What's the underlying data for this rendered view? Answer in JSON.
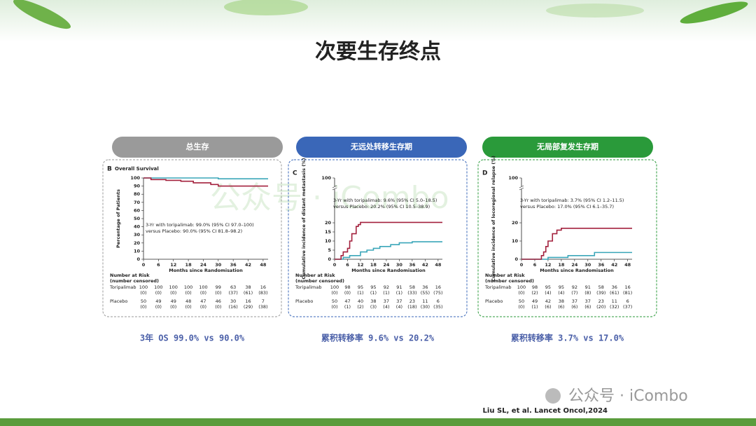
{
  "title": "次要生存终点",
  "panels": [
    {
      "header": "总生存",
      "summary": "3年 OS 99.0% vs 90.0%"
    },
    {
      "header": "无远处转移生存期",
      "summary": "累积转移率 9.6% vs 20.2%"
    },
    {
      "header": "无局部复发生存期",
      "summary": "累积转移率 3.7% vs 17.0%"
    }
  ],
  "citation": "Liu SL, et al. Lancet Oncol,2024",
  "watermark": "公众号 · iCombo",
  "chart_data": [
    {
      "type": "line",
      "step": "post",
      "panel_label": "B",
      "title": "Overall Survival",
      "y_label": "Percentage of Patients",
      "x_label": "Months since Randomisation",
      "xlim": [
        0,
        50
      ],
      "xticks": [
        0,
        6,
        12,
        18,
        24,
        30,
        36,
        42,
        48
      ],
      "ylim": [
        0,
        100
      ],
      "yticks": [
        0,
        10,
        20,
        30,
        40,
        50,
        60,
        70,
        80,
        90,
        100
      ],
      "annotations": [
        "3-Yr with toripalimab: 99.0% (95% CI 97.0–100)",
        "versus Placebo: 90.0% (95% CI 81.8–98.2)"
      ],
      "series": [
        {
          "name": "Toripalimab",
          "color": "#3aa6b9",
          "x": [
            0,
            30,
            50
          ],
          "values": [
            100,
            99,
            99
          ]
        },
        {
          "name": "Placebo",
          "color": "#a3213d",
          "x": [
            0,
            3,
            9,
            15,
            20,
            27,
            30,
            50
          ],
          "values": [
            100,
            98,
            97,
            96,
            94,
            92,
            90,
            90
          ]
        }
      ],
      "risk_table": {
        "title": "Number at Risk",
        "subtitle": "(number censored)",
        "rows": [
          {
            "at_risk": [
              100,
              100,
              100,
              100,
              100,
              99,
              63,
              38,
              16
            ],
            "censored": [
              "(0)",
              "(0)",
              "(0)",
              "(0)",
              "(0)",
              "(0)",
              "(37)",
              "(61)",
              "(83)"
            ]
          },
          {
            "at_risk": [
              50,
              49,
              49,
              48,
              47,
              46,
              30,
              16,
              7
            ],
            "censored": [
              "(0)",
              "(0)",
              "(0)",
              "(0)",
              "(0)",
              "(0)",
              "(16)",
              "(29)",
              "(38)"
            ]
          }
        ]
      }
    },
    {
      "type": "line",
      "step": "post",
      "panel_label": "C",
      "y_label": "Cumulative incidence of distant metastasis (%)",
      "x_label": "Months since Randomisation",
      "xlim": [
        0,
        50
      ],
      "xticks": [
        0,
        6,
        12,
        18,
        24,
        30,
        36,
        42,
        48
      ],
      "ylim": [
        0,
        20
      ],
      "yticks": [
        0,
        5,
        10,
        15,
        20
      ],
      "y_break_tick": 100,
      "annotations": [
        "3-Yr with toripalimab: 9.6% (95% CI 5.0–18.5)",
        "versus Placebo: 20.2% (95% CI 10.5–38.9)"
      ],
      "series": [
        {
          "name": "Toripalimab",
          "color": "#3aa6b9",
          "x": [
            0,
            4,
            7,
            12,
            15,
            18,
            21,
            26,
            30,
            36,
            50
          ],
          "values": [
            0,
            1,
            2,
            4,
            5,
            6,
            7,
            8,
            9,
            9.6,
            9.6
          ]
        },
        {
          "name": "Placebo",
          "color": "#a3213d",
          "x": [
            0,
            3,
            4,
            6,
            7,
            8,
            10,
            11,
            12,
            50
          ],
          "values": [
            0,
            2,
            4,
            6,
            10,
            14,
            18,
            19,
            20.2,
            20.2
          ]
        }
      ],
      "risk_table": {
        "title": "Number at Risk",
        "subtitle": "(number censored)",
        "rows": [
          {
            "at_risk": [
              100,
              98,
              95,
              95,
              92,
              91,
              58,
              36,
              16
            ],
            "censored": [
              "(0)",
              "(0)",
              "(1)",
              "(1)",
              "(1)",
              "(1)",
              "(33)",
              "(55)",
              "(75)"
            ]
          },
          {
            "at_risk": [
              50,
              47,
              40,
              38,
              37,
              37,
              23,
              11,
              6
            ],
            "censored": [
              "(0)",
              "(1)",
              "(2)",
              "(3)",
              "(4)",
              "(4)",
              "(18)",
              "(30)",
              "(35)"
            ]
          }
        ]
      }
    },
    {
      "type": "line",
      "step": "post",
      "panel_label": "D",
      "y_label": "Cumulative incidence of locoregional relapse (%)",
      "x_label": "Months since Randomisation",
      "xlim": [
        0,
        50
      ],
      "xticks": [
        0,
        6,
        12,
        18,
        24,
        30,
        36,
        42,
        48
      ],
      "ylim": [
        0,
        20
      ],
      "yticks": [
        0,
        10,
        20
      ],
      "y_break_tick": 100,
      "annotations": [
        "3-Yr with toripalimab: 3.7% (95% CI 1.2–11.5)",
        "versus Placebo: 17.0% (95% CI 6.1–35.7)"
      ],
      "series": [
        {
          "name": "Toripalimab",
          "color": "#3aa6b9",
          "x": [
            0,
            12,
            21,
            33,
            50
          ],
          "values": [
            0,
            1,
            2,
            3.7,
            3.7
          ]
        },
        {
          "name": "Placebo",
          "color": "#a3213d",
          "x": [
            0,
            9,
            10,
            11,
            12,
            14,
            16,
            18,
            50
          ],
          "values": [
            0,
            2,
            4,
            7,
            10,
            14,
            16,
            17,
            17
          ]
        }
      ],
      "risk_table": {
        "title": "Number at Risk",
        "subtitle": "(number censored)",
        "rows": [
          {
            "at_risk": [
              100,
              98,
              95,
              95,
              92,
              91,
              58,
              36,
              16
            ],
            "censored": [
              "(0)",
              "(2)",
              "(4)",
              "(4)",
              "(7)",
              "(8)",
              "(39)",
              "(61)",
              "(81)"
            ]
          },
          {
            "at_risk": [
              50,
              49,
              42,
              38,
              37,
              37,
              23,
              11,
              6
            ],
            "censored": [
              "(0)",
              "(1)",
              "(6)",
              "(6)",
              "(6)",
              "(6)",
              "(20)",
              "(32)",
              "(37)"
            ]
          }
        ]
      }
    }
  ]
}
